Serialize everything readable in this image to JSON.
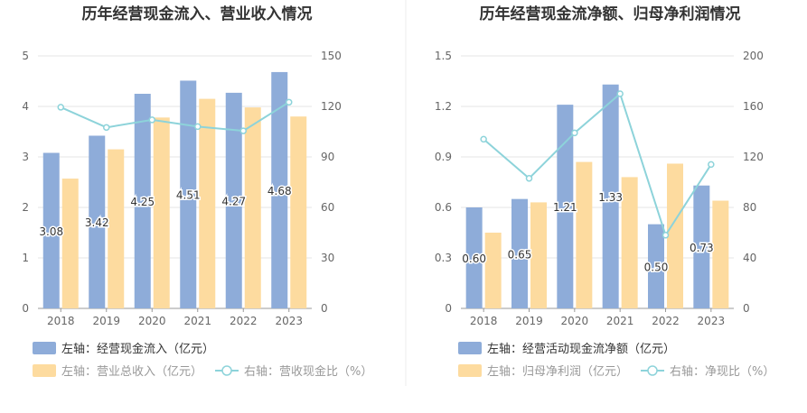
{
  "charts": [
    {
      "title": "历年经营现金流入、营业收入情况",
      "legend": [
        {
          "label": "左轴：经营现金流入（亿元）",
          "kind": "bar",
          "color": "#8eacd9"
        },
        {
          "label": "左轴：营业总收入（亿元）",
          "kind": "bar",
          "color": "#fddb9f"
        },
        {
          "label": "右轴：营收现金比（%）",
          "kind": "line",
          "color": "#8dd3da"
        }
      ]
    },
    {
      "title": "历年经营现金流净额、归母净利润情况",
      "legend": [
        {
          "label": "左轴：经营活动现金流净额（亿元）",
          "kind": "bar",
          "color": "#8eacd9"
        },
        {
          "label": "左轴：归母净利润（亿元）",
          "kind": "bar",
          "color": "#fddb9f"
        },
        {
          "label": "右轴：净现比（%）",
          "kind": "line",
          "color": "#8dd3da"
        }
      ]
    }
  ],
  "chart_data": [
    {
      "type": "bar",
      "title": "历年经营现金流入、营业收入情况",
      "categories": [
        "2018",
        "2019",
        "2020",
        "2021",
        "2022",
        "2023"
      ],
      "y_left": {
        "min": 0,
        "max": 5,
        "ticks": [
          "0",
          "1",
          "2",
          "3",
          "4",
          "5"
        ]
      },
      "y_right": {
        "min": 0,
        "max": 150,
        "ticks": [
          "0",
          "30",
          "60",
          "90",
          "120",
          "150"
        ]
      },
      "grid": true,
      "legend_position": "bottom",
      "series": [
        {
          "name": "左轴：经营现金流入（亿元）",
          "type": "bar",
          "axis": "left",
          "color": "#8eacd9",
          "values": [
            3.08,
            3.42,
            4.25,
            4.51,
            4.27,
            4.68
          ],
          "labels": [
            "3.08",
            "3.42",
            "4.25",
            "4.51",
            "4.27",
            "4.68"
          ]
        },
        {
          "name": "左轴：营业总收入（亿元）",
          "type": "bar",
          "axis": "left",
          "color": "#fddb9f",
          "values": [
            2.57,
            3.15,
            3.78,
            4.15,
            3.98,
            3.8
          ]
        },
        {
          "name": "右轴：营收现金比（%）",
          "type": "line",
          "axis": "right",
          "color": "#8dd3da",
          "values": [
            119.5,
            107.5,
            112.0,
            108.0,
            105.5,
            122.5
          ]
        }
      ]
    },
    {
      "type": "bar",
      "title": "历年经营现金流净额、归母净利润情况",
      "categories": [
        "2018",
        "2019",
        "2020",
        "2021",
        "2022",
        "2023"
      ],
      "y_left": {
        "min": 0,
        "max": 1.5,
        "ticks": [
          "0",
          "0.3",
          "0.6",
          "0.9",
          "1.2",
          "1.5"
        ]
      },
      "y_right": {
        "min": 0,
        "max": 200,
        "ticks": [
          "0",
          "40",
          "80",
          "120",
          "160",
          "200"
        ]
      },
      "grid": true,
      "legend_position": "bottom",
      "series": [
        {
          "name": "左轴：经营活动现金流净额（亿元）",
          "type": "bar",
          "axis": "left",
          "color": "#8eacd9",
          "values": [
            0.6,
            0.65,
            1.21,
            1.33,
            0.5,
            0.73
          ],
          "labels": [
            "0.60",
            "0.65",
            "1.21",
            "1.33",
            "0.50",
            "0.73"
          ]
        },
        {
          "name": "左轴：归母净利润（亿元）",
          "type": "bar",
          "axis": "left",
          "color": "#fddb9f",
          "values": [
            0.45,
            0.63,
            0.87,
            0.78,
            0.86,
            0.64
          ]
        },
        {
          "name": "右轴：净现比（%）",
          "type": "line",
          "axis": "right",
          "color": "#8dd3da",
          "values": [
            134.0,
            103.0,
            139.0,
            170.0,
            58.0,
            114.0
          ]
        }
      ]
    }
  ]
}
